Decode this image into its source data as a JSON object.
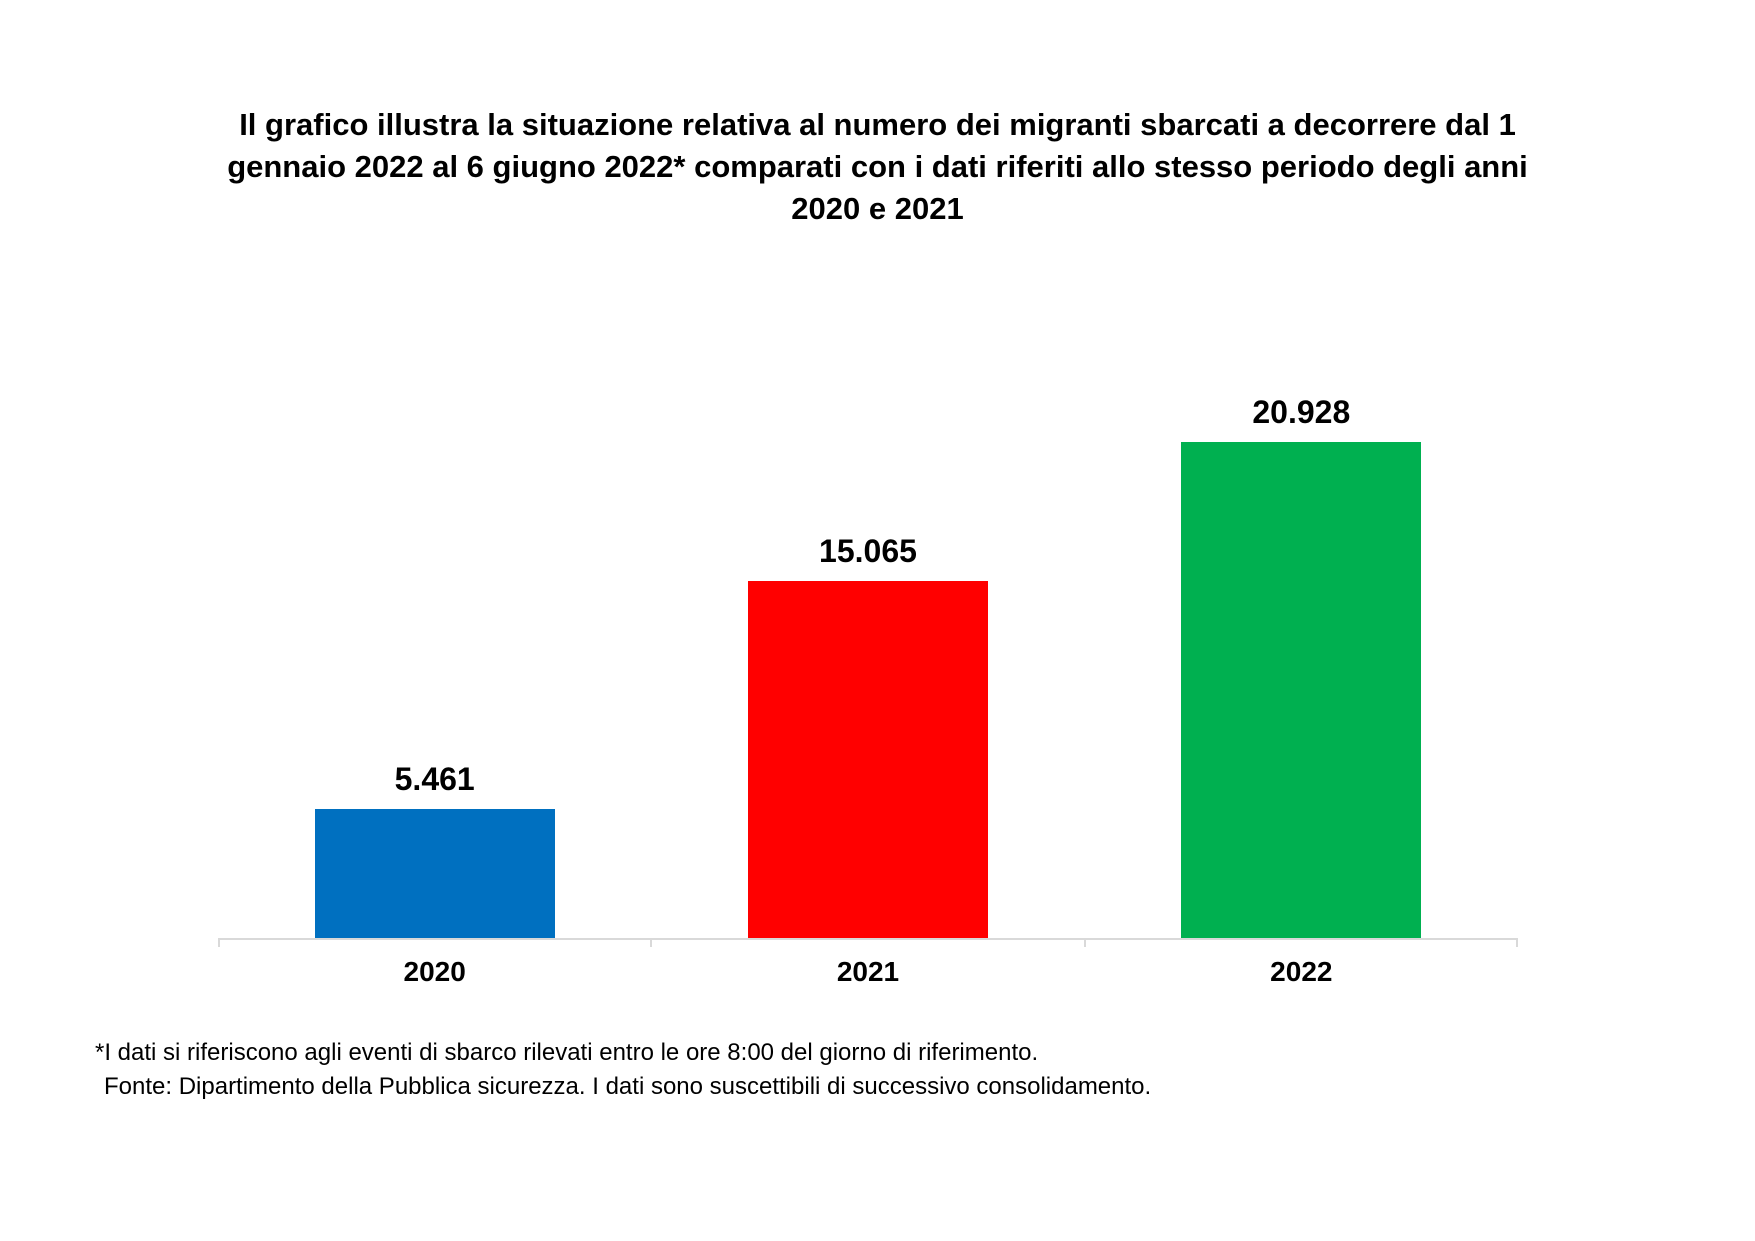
{
  "title": {
    "full": "Il grafico illustra la situazione relativa al numero dei migranti sbarcati a decorrere dal 1 gennaio 2022 al 6 giugno 2022* comparati con i dati riferiti allo stesso periodo degli anni 2020 e 2021",
    "lines": [
      "Il grafico illustra la situazione relativa al numero dei migranti sbarcati a decorrere dal 1",
      "gennaio 2022 al 6 giugno 2022* comparati con i dati riferiti allo stesso periodo degli anni",
      "2020 e 2021"
    ]
  },
  "chart_data": {
    "type": "bar",
    "categories": [
      "2020",
      "2021",
      "2022"
    ],
    "values": [
      5461,
      15065,
      20928
    ],
    "value_labels": [
      "5.461",
      "15.065",
      "20.928"
    ],
    "bar_colors": [
      "#0070C0",
      "#FF0000",
      "#00B050"
    ],
    "title": "Il grafico illustra la situazione relativa al numero dei migranti sbarcati a decorrere dal 1 gennaio 2022 al 6 giugno 2022* comparati con i dati riferiti allo stesso periodo degli anni 2020 e 2021",
    "xlabel": "",
    "ylabel": "",
    "ylim": [
      0,
      20928
    ],
    "grid": false,
    "legend": false,
    "axis_line_color": "#D9D9D9",
    "data_label_position": "above_bar"
  },
  "footnotes": {
    "asterisk": "*I dati si riferiscono agli eventi di sbarco rilevati entro le ore 8:00 del giorno di riferimento.",
    "source": "Fonte: Dipartimento della Pubblica sicurezza. I dati sono suscettibili di successivo consolidamento."
  }
}
